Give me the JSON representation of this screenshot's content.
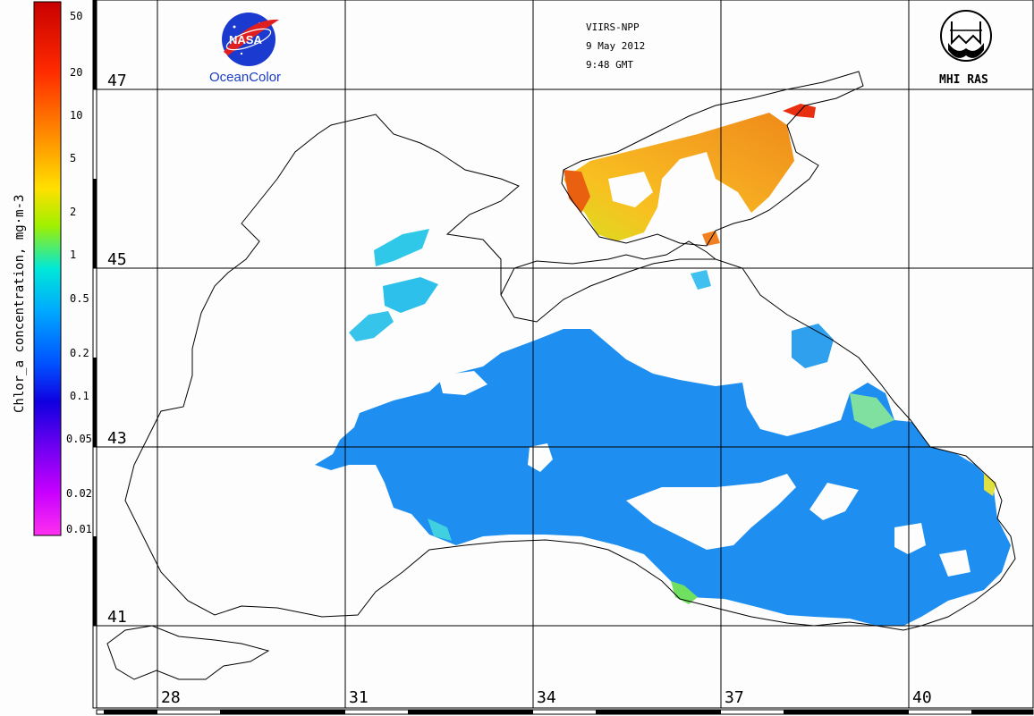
{
  "colorbar": {
    "title": "Chlor_a concentration, mg·m-3",
    "ticks": [
      "50",
      "20",
      "10",
      "5",
      "2",
      "1",
      "0.5",
      "0.2",
      "0.1",
      "0.05",
      "0.02",
      "0.01"
    ]
  },
  "header": {
    "sensor": "VIIRS-NPP",
    "date": "9 May 2012",
    "time": "9:48 GMT"
  },
  "logos": {
    "nasa": "NASA",
    "oceancolor": "OceanColor",
    "mhi": "MHI RAS"
  },
  "grid": {
    "latitudes": [
      "47",
      "45",
      "43",
      "41"
    ],
    "longitudes": [
      "28",
      "31",
      "34",
      "37",
      "40"
    ]
  },
  "colors": {
    "open_sea": "#1e8ff0",
    "coastal_high": "#f0900a",
    "high_chl": "#e02010",
    "mid_chl": "#20d0f0",
    "coast_line": "#000000",
    "grid_line": "#000000"
  }
}
